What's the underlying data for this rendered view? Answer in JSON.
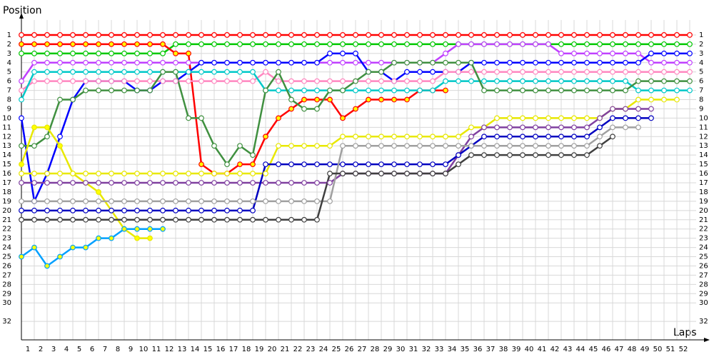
{
  "chart_data": {
    "type": "line",
    "title": "Position",
    "x_label": "Laps",
    "x": [
      0,
      1,
      2,
      3,
      4,
      5,
      6,
      7,
      8,
      9,
      10,
      11,
      12,
      13,
      14,
      15,
      16,
      17,
      18,
      19,
      20,
      21,
      22,
      23,
      24,
      25,
      26,
      27,
      28,
      29,
      30,
      31,
      32,
      33,
      34,
      35,
      36,
      37,
      38,
      39,
      40,
      41,
      42,
      43,
      44,
      45,
      46,
      47,
      48,
      49,
      50,
      51,
      52
    ],
    "xlim": [
      0,
      52.5
    ],
    "xticks": [
      1,
      2,
      3,
      4,
      5,
      6,
      7,
      8,
      9,
      10,
      11,
      12,
      13,
      14,
      15,
      16,
      17,
      18,
      19,
      20,
      21,
      22,
      23,
      24,
      25,
      26,
      27,
      28,
      29,
      30,
      31,
      32,
      33,
      34,
      35,
      36,
      37,
      38,
      39,
      40,
      41,
      42,
      43,
      44,
      45,
      46,
      47,
      48,
      49,
      50,
      51,
      52
    ],
    "ylim": [
      0,
      34
    ],
    "yticks": [
      1,
      2,
      3,
      4,
      5,
      6,
      7,
      8,
      9,
      10,
      11,
      12,
      13,
      14,
      15,
      16,
      17,
      18,
      19,
      20,
      21,
      22,
      23,
      24,
      25,
      26,
      27,
      28,
      29,
      30,
      32
    ],
    "inverted_y": true,
    "grid": true,
    "series": [
      {
        "color": "#ff0000",
        "marker": "#ffffff",
        "values": [
          1,
          1,
          1,
          1,
          1,
          1,
          1,
          1,
          1,
          1,
          1,
          1,
          1,
          1,
          1,
          1,
          1,
          1,
          1,
          1,
          1,
          1,
          1,
          1,
          1,
          1,
          1,
          1,
          1,
          1,
          1,
          1,
          1,
          1,
          1,
          1,
          1,
          1,
          1,
          1,
          1,
          1,
          1,
          1,
          1,
          1,
          1,
          1,
          1,
          1,
          1,
          1,
          1
        ]
      },
      {
        "color": "#00c800",
        "marker": "#ffffff",
        "values": [
          3,
          3,
          3,
          3,
          3,
          3,
          3,
          3,
          3,
          3,
          3,
          3,
          2,
          2,
          2,
          2,
          2,
          2,
          2,
          2,
          2,
          2,
          2,
          2,
          2,
          2,
          2,
          2,
          2,
          2,
          2,
          2,
          2,
          2,
          2,
          2,
          2,
          2,
          2,
          2,
          2,
          2,
          2,
          2,
          2,
          2,
          2,
          2,
          2,
          2,
          2,
          2,
          2
        ]
      },
      {
        "color": "#ff0000",
        "marker": "#ffff00",
        "values": [
          2,
          2,
          2,
          2,
          2,
          2,
          2,
          2,
          2,
          2,
          2,
          2,
          3,
          3,
          15,
          16,
          16,
          15,
          15,
          12,
          10,
          9,
          8,
          8,
          8,
          10,
          9,
          8,
          8,
          8,
          8,
          7,
          7,
          7,
          null,
          null,
          null,
          null,
          null,
          null,
          null,
          null,
          null,
          null,
          null,
          null,
          null,
          null,
          null,
          null,
          null,
          null,
          null
        ]
      },
      {
        "color": "#c040ff",
        "marker": "#ffffff",
        "values": [
          6,
          4,
          4,
          4,
          4,
          4,
          4,
          4,
          4,
          4,
          4,
          4,
          4,
          4,
          4,
          4,
          4,
          4,
          4,
          4,
          4,
          4,
          4,
          4,
          4,
          4,
          4,
          4,
          4,
          4,
          4,
          4,
          4,
          3,
          2,
          2,
          2,
          2,
          2,
          2,
          2,
          2,
          3,
          3,
          3,
          3,
          3,
          3,
          3,
          4,
          4,
          4,
          4
        ]
      },
      {
        "color": "#0000ff",
        "marker": "#ffffff",
        "values": [
          10,
          19,
          16,
          12,
          8,
          6,
          6,
          6,
          6,
          7,
          7,
          6,
          6,
          5,
          4,
          4,
          4,
          4,
          4,
          4,
          4,
          4,
          4,
          4,
          3,
          3,
          3,
          5,
          5,
          6,
          5,
          5,
          5,
          5,
          5,
          4,
          4,
          4,
          4,
          4,
          4,
          4,
          4,
          4,
          4,
          4,
          4,
          4,
          4,
          3,
          3,
          3,
          3
        ]
      },
      {
        "color": "#ff88c0",
        "marker": "#ffffff",
        "values": [
          7,
          6,
          6,
          6,
          6,
          6,
          6,
          6,
          6,
          6,
          6,
          6,
          6,
          6,
          6,
          6,
          6,
          6,
          6,
          5,
          6,
          6,
          6,
          6,
          6,
          6,
          6,
          6,
          6,
          6,
          6,
          6,
          6,
          5,
          5,
          5,
          5,
          5,
          5,
          5,
          5,
          5,
          5,
          5,
          5,
          5,
          5,
          5,
          5,
          5,
          5,
          5,
          5
        ]
      },
      {
        "color": "#00c8c8",
        "marker": "#ffffff",
        "values": [
          8,
          5,
          5,
          5,
          5,
          5,
          5,
          5,
          5,
          5,
          5,
          5,
          5,
          5,
          5,
          5,
          5,
          5,
          5,
          7,
          7,
          7,
          7,
          7,
          7,
          7,
          7,
          7,
          7,
          7,
          7,
          7,
          7,
          6,
          6,
          6,
          6,
          6,
          6,
          6,
          6,
          6,
          6,
          6,
          6,
          6,
          6,
          6,
          7,
          7,
          7,
          7,
          7
        ]
      },
      {
        "color": "#409040",
        "marker": "#ffffff",
        "values": [
          13,
          13,
          12,
          8,
          8,
          7,
          7,
          7,
          7,
          7,
          7,
          5,
          5,
          10,
          10,
          13,
          15,
          13,
          14,
          7,
          5,
          8,
          9,
          9,
          7,
          7,
          6,
          5,
          5,
          4,
          4,
          4,
          4,
          4,
          4,
          4,
          7,
          7,
          7,
          7,
          7,
          7,
          7,
          7,
          7,
          7,
          7,
          7,
          6,
          6,
          6,
          6,
          6
        ]
      },
      {
        "color": "#e8e800",
        "marker": "#ffff00",
        "values": [
          15,
          11,
          11,
          13,
          16,
          17,
          18,
          20,
          22,
          23,
          23,
          null,
          null,
          null,
          null,
          null,
          null,
          null,
          null,
          null,
          null,
          null,
          null,
          null,
          null,
          null,
          null,
          null,
          null,
          null,
          null,
          null,
          null,
          null,
          null,
          null,
          null,
          null,
          null,
          null,
          null,
          null,
          null,
          null,
          null,
          null,
          null,
          null,
          null,
          null,
          null,
          null,
          null
        ]
      },
      {
        "color": "#e8e800",
        "marker": "#ffffff",
        "values": [
          16,
          16,
          16,
          16,
          16,
          16,
          16,
          16,
          16,
          16,
          16,
          16,
          16,
          16,
          16,
          16,
          16,
          16,
          16,
          16,
          13,
          13,
          13,
          13,
          13,
          12,
          12,
          12,
          12,
          12,
          12,
          12,
          12,
          12,
          12,
          11,
          11,
          10,
          10,
          10,
          10,
          10,
          10,
          10,
          10,
          10,
          9,
          9,
          8,
          8,
          8,
          8,
          null
        ]
      },
      {
        "color": "#8040a0",
        "marker": "#ffffff",
        "values": [
          17,
          17,
          17,
          17,
          17,
          17,
          17,
          17,
          17,
          17,
          17,
          17,
          17,
          17,
          17,
          17,
          17,
          17,
          17,
          17,
          17,
          17,
          17,
          17,
          17,
          16,
          16,
          16,
          16,
          16,
          16,
          16,
          16,
          16,
          14,
          12,
          11,
          11,
          11,
          11,
          11,
          11,
          11,
          11,
          11,
          10,
          9,
          9,
          9,
          9,
          null,
          null,
          null
        ]
      },
      {
        "color": "#0000c0",
        "marker": "#ffffff",
        "values": [
          20,
          20,
          20,
          20,
          20,
          20,
          20,
          20,
          20,
          20,
          20,
          20,
          20,
          20,
          20,
          20,
          20,
          20,
          20,
          15,
          15,
          15,
          15,
          15,
          15,
          15,
          15,
          15,
          15,
          15,
          15,
          15,
          15,
          15,
          14,
          13,
          12,
          12,
          12,
          12,
          12,
          12,
          12,
          12,
          12,
          11,
          10,
          10,
          10,
          10,
          null,
          null,
          null
        ]
      },
      {
        "color": "#a0a0a0",
        "marker": "#ffffff",
        "values": [
          19,
          19,
          19,
          19,
          19,
          19,
          19,
          19,
          19,
          19,
          19,
          19,
          19,
          19,
          19,
          19,
          19,
          19,
          19,
          19,
          19,
          19,
          19,
          19,
          19,
          13,
          13,
          13,
          13,
          13,
          13,
          13,
          13,
          13,
          13,
          13,
          13,
          13,
          13,
          13,
          13,
          13,
          13,
          13,
          13,
          12,
          11,
          11,
          11,
          null,
          null,
          null,
          null
        ]
      },
      {
        "color": "#404040",
        "marker": "#ffffff",
        "values": [
          21,
          21,
          21,
          21,
          21,
          21,
          21,
          21,
          21,
          21,
          21,
          21,
          21,
          21,
          21,
          21,
          21,
          21,
          21,
          21,
          21,
          21,
          21,
          21,
          16,
          16,
          16,
          16,
          16,
          16,
          16,
          16,
          16,
          16,
          15,
          14,
          14,
          14,
          14,
          14,
          14,
          14,
          14,
          14,
          14,
          13,
          12,
          null,
          null,
          null,
          null,
          null,
          null
        ]
      },
      {
        "color": "#00a0ff",
        "marker": "#ffff00",
        "values": [
          25,
          24,
          26,
          25,
          24,
          24,
          23,
          23,
          22,
          22,
          22,
          22,
          null,
          null,
          null,
          null,
          null,
          null,
          null,
          null,
          null,
          null,
          null,
          null,
          null,
          null,
          null,
          null,
          null,
          null,
          null,
          null,
          null,
          null,
          null,
          null,
          null,
          null,
          null,
          null,
          null,
          null,
          null,
          null,
          null,
          null,
          null,
          null,
          null,
          null,
          null,
          null,
          null
        ]
      }
    ]
  }
}
